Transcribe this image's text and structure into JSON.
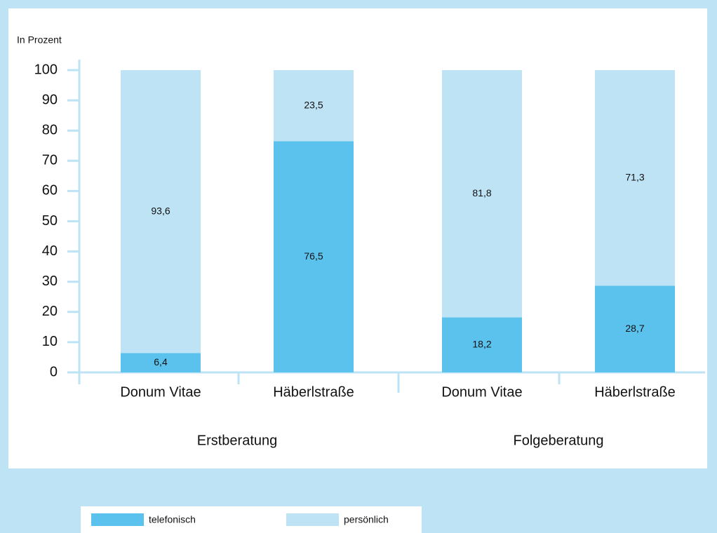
{
  "chart_data": {
    "type": "stacked_bar",
    "y_label": "In Prozent",
    "categories": [
      "Donum Vitae",
      "Häberlstraße",
      "Donum Vitae",
      "Häberlstraße"
    ],
    "groups": [
      "Erstberatung",
      "Folgeberatung"
    ],
    "series": [
      {
        "name": "telefonisch",
        "color": "#5bc2ee",
        "values": [
          6.4,
          76.5,
          18.2,
          28.7
        ],
        "value_labels": [
          "6,4",
          "76,5",
          "18,2",
          "28,7"
        ]
      },
      {
        "name": "persönlich",
        "color": "#bde3f5",
        "values": [
          93.6,
          23.5,
          81.8,
          71.3
        ],
        "value_labels": [
          "93,6",
          "23,5",
          "81,8",
          "71,3"
        ]
      }
    ],
    "ylim": [
      0,
      100
    ],
    "yticks": [
      0,
      10,
      20,
      30,
      40,
      50,
      60,
      70,
      80,
      90,
      100
    ]
  }
}
